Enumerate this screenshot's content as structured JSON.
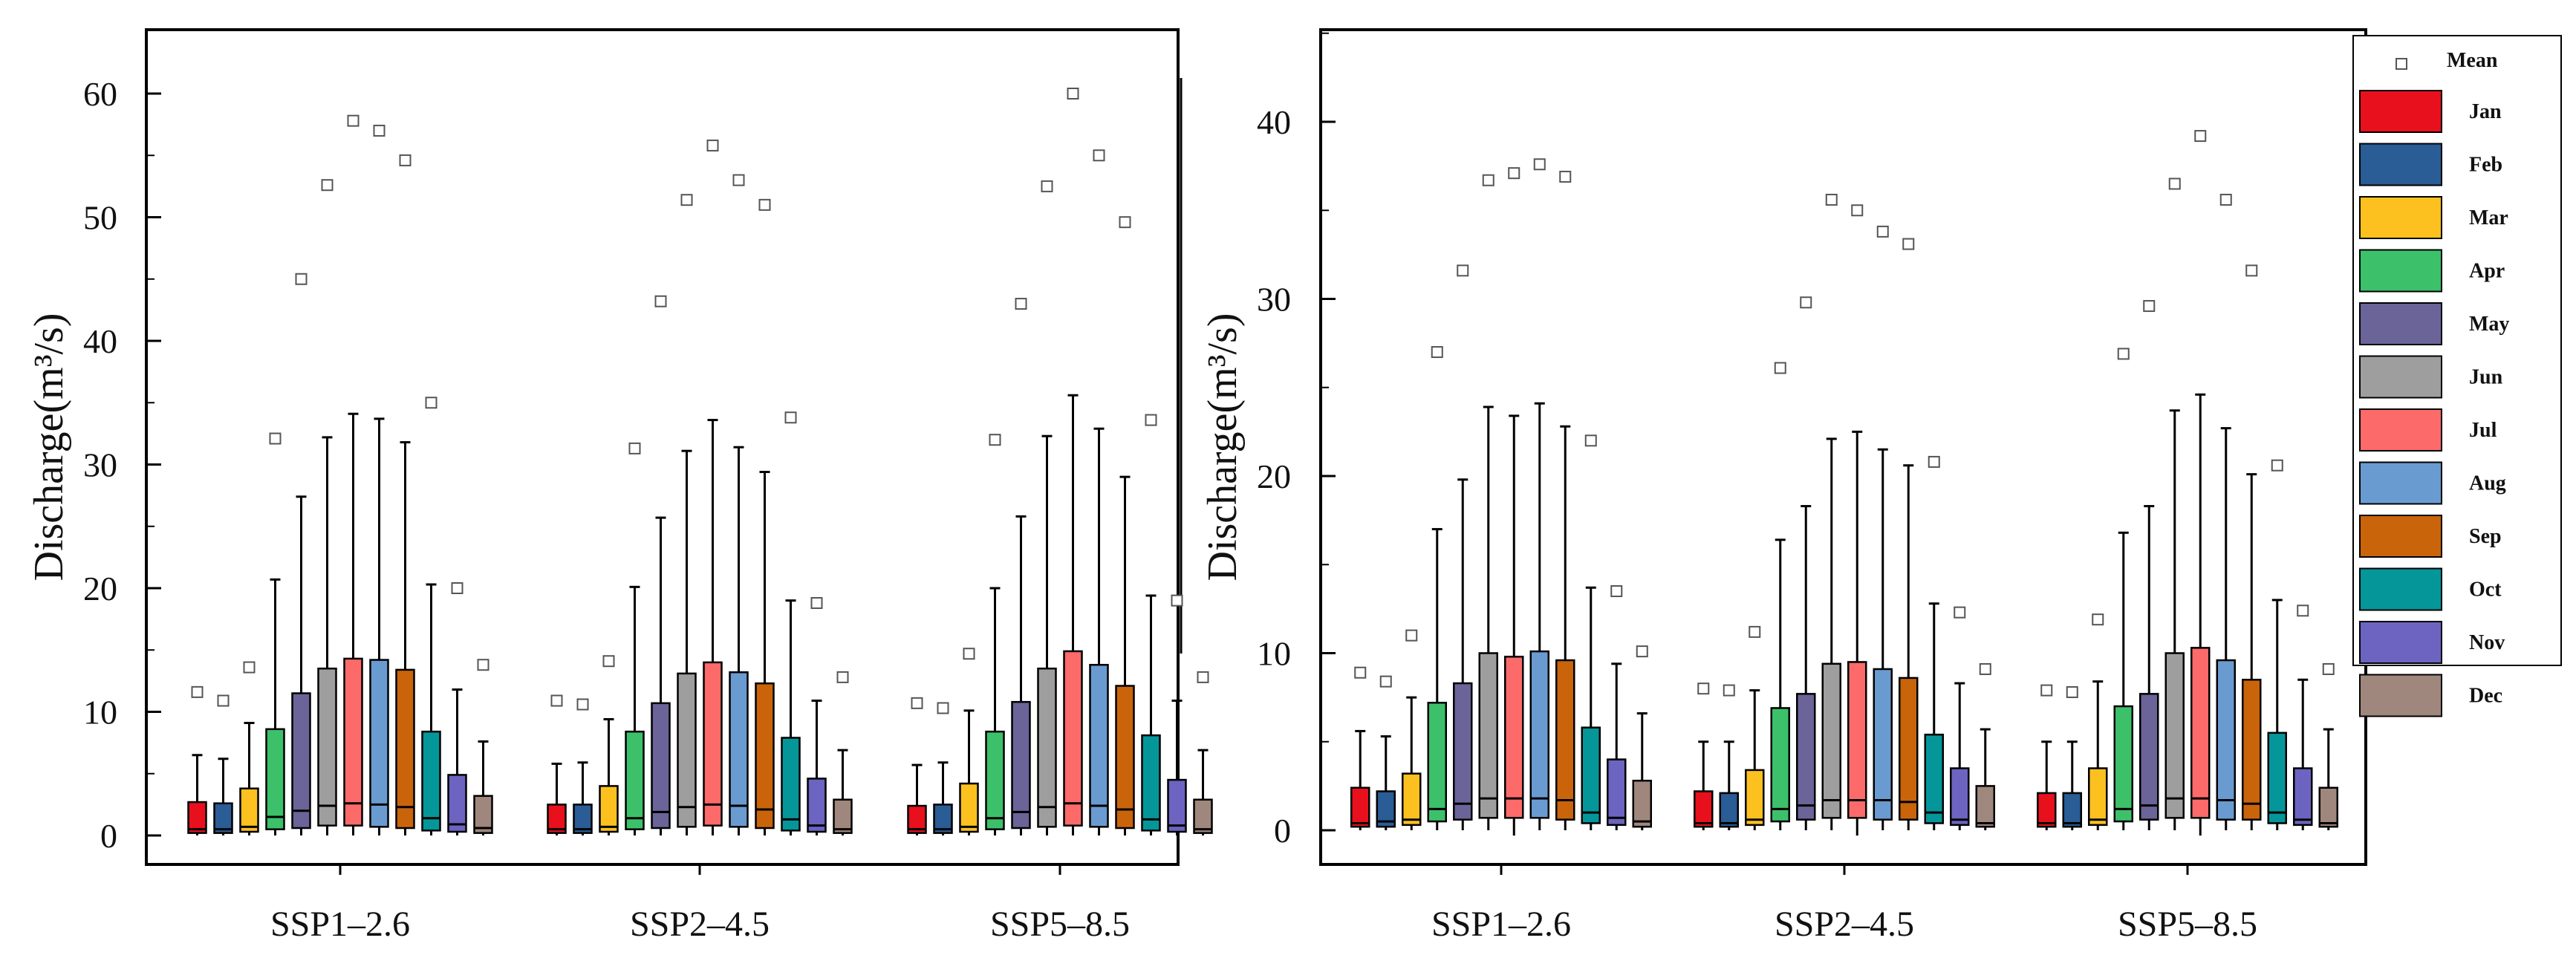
{
  "months": [
    "Jan",
    "Feb",
    "Mar",
    "Apr",
    "May",
    "Jun",
    "Jul",
    "Aug",
    "Sep",
    "Oct",
    "Nov",
    "Dec"
  ],
  "colors": [
    "#e8101c",
    "#2a5c96",
    "#fcc11f",
    "#3cc16a",
    "#6a6499",
    "#9e9e9e",
    "#fd6a6a",
    "#6a9bd0",
    "#c9640b",
    "#05969a",
    "#6c64c0",
    "#9f877d"
  ],
  "legend": {
    "mean_label": "Mean"
  },
  "chart_data": [
    {
      "type": "box",
      "title": "",
      "ylabel_main": "Discharge",
      "ylabel_unit": "(m³/s)",
      "categories": [
        "SSP1–2.6",
        "SSP2–4.5",
        "SSP5–8.5"
      ],
      "ylim": [
        -1.5,
        65
      ],
      "yticks": [
        0,
        10,
        20,
        30,
        40,
        50,
        60
      ],
      "scenarios": [
        {
          "name": "SSP1–2.6",
          "q3": [
            2.7,
            2.6,
            3.8,
            8.6,
            11.5,
            13.5,
            14.3,
            14.2,
            13.4,
            8.4,
            4.9,
            3.2
          ],
          "med": [
            0.5,
            0.5,
            0.7,
            1.5,
            2.0,
            2.4,
            2.6,
            2.5,
            2.3,
            1.4,
            0.9,
            0.6
          ],
          "q1": [
            0.2,
            0.2,
            0.3,
            0.5,
            0.6,
            0.8,
            0.8,
            0.7,
            0.6,
            0.4,
            0.3,
            0.2
          ],
          "wmax": [
            6.5,
            6.2,
            9.1,
            20.7,
            27.4,
            32.2,
            34.1,
            33.7,
            31.8,
            20.3,
            11.8,
            7.6
          ],
          "wmin": [
            0,
            0,
            0,
            0,
            0,
            0,
            0,
            0,
            0,
            0,
            0,
            0
          ],
          "mean": [
            11.6,
            10.9,
            13.6,
            32.1,
            45.0,
            52.6,
            57.8,
            57.0,
            54.6,
            35.0,
            20.0,
            13.8
          ]
        },
        {
          "name": "SSP2–4.5",
          "q3": [
            2.5,
            2.5,
            4.0,
            8.4,
            10.7,
            13.1,
            14.0,
            13.2,
            12.3,
            7.9,
            4.6,
            2.9
          ],
          "med": [
            0.5,
            0.5,
            0.7,
            1.4,
            1.9,
            2.3,
            2.5,
            2.4,
            2.1,
            1.3,
            0.8,
            0.5
          ],
          "q1": [
            0.2,
            0.2,
            0.3,
            0.5,
            0.6,
            0.7,
            0.8,
            0.7,
            0.6,
            0.4,
            0.3,
            0.2
          ],
          "wmax": [
            5.8,
            5.9,
            9.4,
            20.1,
            25.7,
            31.1,
            33.6,
            31.4,
            29.4,
            19.0,
            10.9,
            6.9
          ],
          "wmin": [
            0,
            0,
            0,
            0,
            0,
            0,
            0,
            0,
            0,
            0,
            0,
            0
          ],
          "mean": [
            10.9,
            10.6,
            14.1,
            31.3,
            43.2,
            51.4,
            55.8,
            53.0,
            51.0,
            33.8,
            18.8,
            12.8
          ]
        },
        {
          "name": "SSP5–8.5",
          "q3": [
            2.4,
            2.5,
            4.2,
            8.4,
            10.8,
            13.5,
            14.9,
            13.8,
            12.1,
            8.1,
            4.5,
            2.9
          ],
          "med": [
            0.5,
            0.5,
            0.7,
            1.4,
            1.9,
            2.3,
            2.6,
            2.4,
            2.1,
            1.3,
            0.8,
            0.5
          ],
          "q1": [
            0.2,
            0.2,
            0.3,
            0.5,
            0.6,
            0.7,
            0.8,
            0.7,
            0.6,
            0.4,
            0.3,
            0.2
          ],
          "wmax": [
            5.7,
            5.9,
            10.1,
            20.0,
            25.8,
            32.3,
            35.6,
            32.9,
            29.0,
            19.4,
            10.9,
            6.9
          ],
          "wmin": [
            0,
            0,
            0,
            0,
            0,
            0,
            0,
            0,
            0,
            0,
            0,
            0
          ],
          "mean": [
            10.7,
            10.3,
            14.7,
            32.0,
            43.0,
            52.5,
            60.0,
            55.0,
            49.6,
            33.6,
            19.0,
            12.8
          ]
        }
      ]
    },
    {
      "type": "box",
      "title": "",
      "ylabel_main": "Discharge",
      "ylabel_unit": "(m³/s)",
      "categories": [
        "SSP1–2.6",
        "SSP2–4.5",
        "SSP5–8.5"
      ],
      "ylim": [
        -1.5,
        45
      ],
      "yticks": [
        0,
        10,
        20,
        30,
        40
      ],
      "scenarios": [
        {
          "name": "SSP1–2.6",
          "q3": [
            2.4,
            2.2,
            3.2,
            7.2,
            8.3,
            10.0,
            9.8,
            10.1,
            9.6,
            5.8,
            4.0,
            2.8
          ],
          "med": [
            0.4,
            0.5,
            0.6,
            1.2,
            1.5,
            1.8,
            1.8,
            1.8,
            1.7,
            1.0,
            0.7,
            0.5
          ],
          "q1": [
            0.2,
            0.2,
            0.3,
            0.5,
            0.6,
            0.7,
            0.7,
            0.7,
            0.6,
            0.4,
            0.3,
            0.2
          ],
          "wmax": [
            5.6,
            5.3,
            7.5,
            17.0,
            19.8,
            23.9,
            23.4,
            24.1,
            22.8,
            13.7,
            9.4,
            6.6
          ],
          "wmin": [
            0,
            0,
            0,
            0,
            0,
            0,
            -0.3,
            0,
            0,
            0,
            0,
            0
          ],
          "mean": [
            8.9,
            8.4,
            11.0,
            27.0,
            31.6,
            36.7,
            37.1,
            37.6,
            36.9,
            22.0,
            13.5,
            10.1
          ]
        },
        {
          "name": "SSP2–4.5",
          "q3": [
            2.2,
            2.1,
            3.4,
            6.9,
            7.7,
            9.4,
            9.5,
            9.1,
            8.6,
            5.4,
            3.5,
            2.5
          ],
          "med": [
            0.4,
            0.4,
            0.6,
            1.2,
            1.4,
            1.7,
            1.7,
            1.7,
            1.6,
            1.0,
            0.6,
            0.4
          ],
          "q1": [
            0.2,
            0.2,
            0.3,
            0.5,
            0.6,
            0.7,
            0.7,
            0.6,
            0.6,
            0.4,
            0.3,
            0.2
          ],
          "wmax": [
            5.0,
            5.0,
            7.9,
            16.4,
            18.3,
            22.1,
            22.5,
            21.5,
            20.6,
            12.8,
            8.3,
            5.7
          ],
          "wmin": [
            0,
            0,
            0,
            0,
            0,
            0,
            -0.3,
            0,
            0,
            0,
            0,
            0
          ],
          "mean": [
            8.0,
            7.9,
            11.2,
            26.1,
            29.8,
            35.6,
            35.0,
            33.8,
            33.1,
            20.8,
            12.3,
            9.1
          ]
        },
        {
          "name": "SSP5–8.5",
          "q3": [
            2.1,
            2.1,
            3.5,
            7.0,
            7.7,
            10.0,
            10.3,
            9.6,
            8.5,
            5.5,
            3.5,
            2.4
          ],
          "med": [
            0.4,
            0.4,
            0.6,
            1.2,
            1.4,
            1.8,
            1.8,
            1.7,
            1.5,
            1.0,
            0.6,
            0.4
          ],
          "q1": [
            0.2,
            0.2,
            0.3,
            0.5,
            0.6,
            0.7,
            0.7,
            0.6,
            0.6,
            0.4,
            0.3,
            0.2
          ],
          "wmax": [
            5.0,
            5.0,
            8.4,
            16.8,
            18.3,
            23.7,
            24.6,
            22.7,
            20.1,
            13.0,
            8.5,
            5.7
          ],
          "wmin": [
            0,
            0,
            0,
            0,
            0,
            0,
            -0.3,
            0,
            0,
            0,
            0,
            0
          ],
          "mean": [
            7.9,
            7.8,
            11.9,
            26.9,
            29.6,
            36.5,
            39.2,
            35.6,
            31.6,
            20.6,
            12.4,
            9.1
          ]
        }
      ]
    }
  ]
}
